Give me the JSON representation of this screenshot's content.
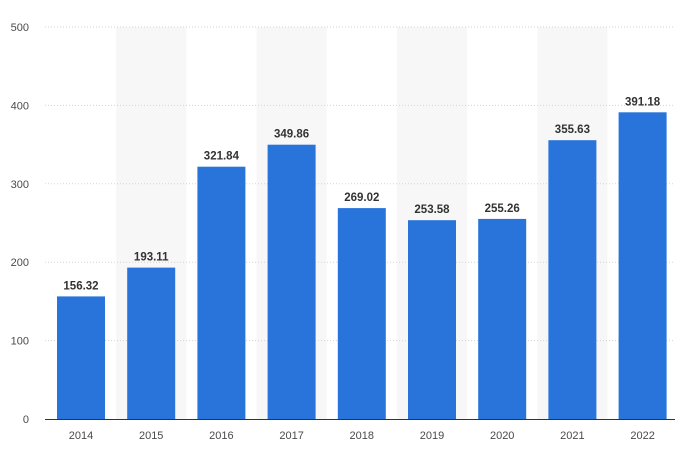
{
  "chart_data": {
    "type": "bar",
    "title": "",
    "xlabel": "",
    "ylabel": "",
    "categories": [
      "2014",
      "2015",
      "2016",
      "2017",
      "2018",
      "2019",
      "2020",
      "2021",
      "2022"
    ],
    "values": [
      156.32,
      193.11,
      321.84,
      349.86,
      269.02,
      253.58,
      255.26,
      355.63,
      391.18
    ],
    "value_labels": [
      "156.32",
      "193.11",
      "321.84",
      "349.86",
      "269.02",
      "253.58",
      "255.26",
      "355.63",
      "391.18"
    ],
    "ylim": [
      0,
      500
    ],
    "yticks": [
      "0",
      "100",
      "200",
      "300",
      "400",
      "500"
    ],
    "grid": true,
    "alternate_bands": true,
    "legend": "none",
    "colors": {
      "bar": "#2874db",
      "band": "#f7f7f7",
      "grid": "#d3d3d3"
    }
  }
}
